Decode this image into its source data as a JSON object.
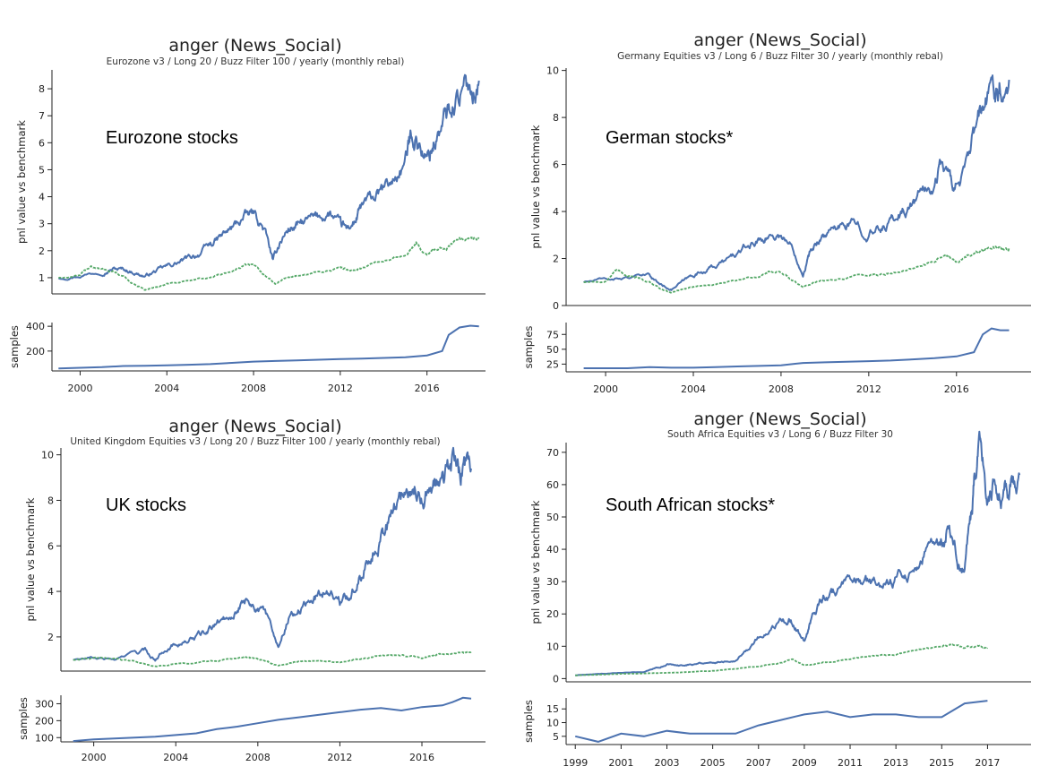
{
  "colors": {
    "strategy": "#4c72b0",
    "benchmark": "#55a868"
  },
  "chart_data": [
    {
      "type": "line",
      "title": "anger (News_Social)",
      "subtitle": "Eurozone v3 / Long 20 / Buzz Filter 100 / yearly (monthly rebal)",
      "annotation": "Eurozone stocks",
      "ylabel": "pnl value vs benchmark",
      "ylim": [
        0.4,
        8.7
      ],
      "yticks": [
        1,
        2,
        3,
        4,
        5,
        6,
        7,
        8
      ],
      "series": [
        {
          "role": "strategy",
          "x": [
            1999.0,
            2000.0,
            2001.0,
            2001.5,
            2002.0,
            2002.5,
            2003.0,
            2003.5,
            2004.0,
            2004.5,
            2005.0,
            2005.5,
            2006.0,
            2006.5,
            2007.0,
            2007.5,
            2008.0,
            2008.5,
            2008.9,
            2009.2,
            2009.6,
            2010.0,
            2010.5,
            2011.0,
            2011.5,
            2012.0,
            2012.3,
            2012.7,
            2013.0,
            2013.5,
            2014.0,
            2014.5,
            2015.0,
            2015.3,
            2015.6,
            2016.0,
            2016.3,
            2016.7,
            2017.0,
            2017.5,
            2018.0,
            2018.4
          ],
          "y": [
            1.0,
            1.1,
            1.25,
            1.35,
            1.3,
            1.2,
            1.05,
            1.25,
            1.4,
            1.55,
            1.7,
            1.9,
            2.2,
            2.5,
            2.8,
            3.2,
            3.35,
            2.8,
            1.6,
            2.3,
            2.8,
            2.9,
            3.1,
            3.2,
            3.4,
            2.9,
            2.8,
            3.1,
            3.6,
            3.9,
            4.2,
            4.6,
            5.3,
            6.4,
            6.1,
            5.3,
            6.0,
            6.6,
            7.2,
            7.8,
            8.0,
            8.3
          ]
        },
        {
          "role": "benchmark",
          "x": [
            1999.0,
            2000.0,
            2000.5,
            2001.0,
            2001.5,
            2002.0,
            2002.5,
            2003.0,
            2003.5,
            2004.0,
            2005.0,
            2006.0,
            2007.0,
            2007.5,
            2008.0,
            2008.5,
            2009.0,
            2009.5,
            2010.0,
            2011.0,
            2012.0,
            2012.5,
            2013.0,
            2014.0,
            2015.0,
            2015.5,
            2016.0,
            2016.5,
            2017.0,
            2017.5,
            2018.0,
            2018.4
          ],
          "y": [
            1.0,
            1.05,
            1.45,
            1.3,
            1.25,
            1.0,
            0.75,
            0.55,
            0.65,
            0.75,
            0.85,
            1.0,
            1.25,
            1.45,
            1.5,
            1.1,
            0.8,
            0.95,
            1.05,
            1.2,
            1.35,
            1.3,
            1.4,
            1.6,
            1.85,
            2.25,
            1.85,
            2.05,
            2.2,
            2.45,
            2.5,
            2.45
          ]
        }
      ],
      "samples": {
        "ylabel": "samples",
        "ylim": [
          40,
          430
        ],
        "yticks": [
          200,
          400
        ],
        "x": [
          1999.0,
          2000.0,
          2001.0,
          2002.0,
          2003.0,
          2004.0,
          2005.0,
          2006.0,
          2007.0,
          2008.0,
          2009.0,
          2010.0,
          2011.0,
          2012.0,
          2013.0,
          2014.0,
          2015.0,
          2016.0,
          2016.7,
          2017.0,
          2017.5,
          2018.0,
          2018.4
        ],
        "y": [
          60,
          65,
          70,
          80,
          82,
          85,
          90,
          95,
          105,
          115,
          120,
          125,
          130,
          135,
          140,
          145,
          150,
          165,
          200,
          330,
          390,
          405,
          400
        ]
      },
      "xticks": [
        2000,
        2004,
        2008,
        2012,
        2016
      ],
      "xlim": [
        1998.7,
        2018.7
      ]
    },
    {
      "type": "line",
      "title": "anger (News_Social)",
      "subtitle": "Germany Equities v3 / Long 6 / Buzz Filter 30 / yearly (monthly rebal)",
      "annotation": "German stocks*",
      "ylabel": "pnl value vs benchmark",
      "ylim": [
        0,
        10.1
      ],
      "yticks": [
        0,
        2,
        4,
        6,
        8,
        10
      ],
      "series": [
        {
          "role": "strategy",
          "x": [
            1999.0,
            2000.0,
            2001.0,
            2002.0,
            2002.5,
            2003.0,
            2003.5,
            2004.0,
            2004.5,
            2005.0,
            2005.5,
            2006.0,
            2006.5,
            2007.0,
            2007.5,
            2008.0,
            2008.5,
            2009.0,
            2009.3,
            2009.7,
            2010.0,
            2010.5,
            2011.0,
            2011.5,
            2012.0,
            2012.5,
            2013.0,
            2013.5,
            2014.0,
            2014.5,
            2015.0,
            2015.3,
            2015.7,
            2016.0,
            2016.5,
            2016.9,
            2017.3,
            2017.7,
            2018.0,
            2018.4
          ],
          "y": [
            1.0,
            1.1,
            1.2,
            1.25,
            0.9,
            0.7,
            1.0,
            1.3,
            1.5,
            1.7,
            1.9,
            2.2,
            2.5,
            2.8,
            3.0,
            3.0,
            2.5,
            1.4,
            2.2,
            2.8,
            3.0,
            3.2,
            3.4,
            3.4,
            3.1,
            3.2,
            3.6,
            4.0,
            4.3,
            4.9,
            5.0,
            6.2,
            5.3,
            5.2,
            5.8,
            7.5,
            8.5,
            9.3,
            9.5,
            9.6
          ]
        },
        {
          "role": "benchmark",
          "x": [
            1999.0,
            2000.0,
            2000.5,
            2001.0,
            2001.5,
            2002.0,
            2002.5,
            2003.0,
            2003.5,
            2004.0,
            2005.0,
            2006.0,
            2007.0,
            2007.5,
            2008.0,
            2008.5,
            2009.0,
            2009.5,
            2010.0,
            2011.0,
            2012.0,
            2012.5,
            2013.0,
            2014.0,
            2015.0,
            2015.5,
            2016.0,
            2016.5,
            2017.0,
            2017.5,
            2018.0,
            2018.4
          ],
          "y": [
            1.0,
            1.05,
            1.45,
            1.3,
            1.2,
            1.0,
            0.7,
            0.55,
            0.7,
            0.8,
            0.9,
            1.05,
            1.25,
            1.45,
            1.45,
            1.05,
            0.8,
            0.95,
            1.05,
            1.2,
            1.35,
            1.3,
            1.4,
            1.6,
            1.85,
            2.3,
            1.8,
            2.0,
            2.2,
            2.45,
            2.5,
            2.45
          ]
        }
      ],
      "samples": {
        "ylabel": "samples",
        "ylim": [
          12,
          95
        ],
        "yticks": [
          25,
          50,
          75
        ],
        "x": [
          1999.0,
          2001.0,
          2002.0,
          2003.0,
          2004.0,
          2005.0,
          2006.0,
          2007.0,
          2008.0,
          2009.0,
          2010.0,
          2011.0,
          2012.0,
          2013.0,
          2014.0,
          2015.0,
          2016.0,
          2016.8,
          2017.2,
          2017.6,
          2018.0,
          2018.4
        ],
        "y": [
          18,
          18,
          20,
          19,
          19,
          20,
          21,
          22,
          23,
          27,
          28,
          29,
          30,
          31,
          33,
          35,
          38,
          45,
          75,
          85,
          82,
          82
        ]
      },
      "xticks": [
        2000,
        2004,
        2008,
        2012,
        2016
      ],
      "xlim": [
        1998.2,
        2019.4
      ]
    },
    {
      "type": "line",
      "title": "anger (News_Social)",
      "subtitle": "United Kingdom Equities v3 / Long 20 / Buzz Filter 100 / yearly (monthly rebal)",
      "annotation": "UK stocks",
      "ylabel": "pnl value vs benchmark",
      "ylim": [
        0.5,
        10.3
      ],
      "yticks": [
        2,
        4,
        6,
        8,
        10
      ],
      "series": [
        {
          "role": "strategy",
          "x": [
            1999.0,
            2000.0,
            2001.0,
            2002.0,
            2002.5,
            2003.0,
            2003.5,
            2004.0,
            2004.5,
            2005.0,
            2005.5,
            2006.0,
            2006.5,
            2007.0,
            2007.5,
            2008.0,
            2008.5,
            2009.0,
            2009.5,
            2010.0,
            2010.5,
            2011.0,
            2011.5,
            2012.0,
            2012.5,
            2013.0,
            2013.5,
            2014.0,
            2014.5,
            2015.0,
            2015.5,
            2016.0,
            2016.5,
            2016.9,
            2017.3,
            2017.7,
            2018.0,
            2018.4
          ],
          "y": [
            1.0,
            1.05,
            1.0,
            1.3,
            1.4,
            1.0,
            1.5,
            1.7,
            1.8,
            2.0,
            2.2,
            2.6,
            2.9,
            3.3,
            3.7,
            3.3,
            2.8,
            1.6,
            2.9,
            3.2,
            3.5,
            3.9,
            4.2,
            3.5,
            3.8,
            4.7,
            5.8,
            6.6,
            7.3,
            8.2,
            8.7,
            8.2,
            8.9,
            8.5,
            9.2,
            9.8,
            9.1,
            9.4
          ]
        },
        {
          "role": "benchmark",
          "x": [
            1999.0,
            2000.0,
            2001.0,
            2002.0,
            2003.0,
            2004.0,
            2005.0,
            2006.0,
            2007.0,
            2007.5,
            2008.0,
            2008.5,
            2009.0,
            2009.5,
            2010.0,
            2011.0,
            2012.0,
            2013.0,
            2014.0,
            2015.0,
            2016.0,
            2016.5,
            2017.0,
            2018.0,
            2018.4
          ],
          "y": [
            1.0,
            1.05,
            1.0,
            0.9,
            0.7,
            0.8,
            0.85,
            0.95,
            1.05,
            1.1,
            1.0,
            0.9,
            0.7,
            0.85,
            0.9,
            1.0,
            0.9,
            1.05,
            1.15,
            1.2,
            1.1,
            1.2,
            1.25,
            1.3,
            1.25
          ]
        }
      ],
      "samples": {
        "ylabel": "samples",
        "ylim": [
          75,
          350
        ],
        "yticks": [
          100,
          200,
          300
        ],
        "x": [
          1999.0,
          2000.0,
          2001.0,
          2002.0,
          2003.0,
          2004.0,
          2005.0,
          2006.0,
          2007.0,
          2008.0,
          2009.0,
          2010.0,
          2011.0,
          2012.0,
          2013.0,
          2014.0,
          2015.0,
          2016.0,
          2017.0,
          2017.5,
          2018.0,
          2018.4
        ],
        "y": [
          80,
          90,
          95,
          100,
          105,
          115,
          125,
          150,
          165,
          185,
          205,
          220,
          235,
          250,
          265,
          275,
          260,
          280,
          290,
          310,
          335,
          330
        ]
      },
      "xticks": [
        2000,
        2004,
        2008,
        2012,
        2016
      ],
      "xlim": [
        1998.4,
        2019.1
      ]
    },
    {
      "type": "line",
      "title": "anger (News_Social)",
      "subtitle": "South Africa Equities v3 / Long 6 / Buzz Filter 30",
      "annotation": "South African stocks*",
      "ylabel": "pnl value vs benchmark",
      "ylim": [
        -1,
        73
      ],
      "yticks": [
        0,
        10,
        20,
        30,
        40,
        50,
        60,
        70
      ],
      "series": [
        {
          "role": "strategy",
          "x": [
            1999.0,
            2000.0,
            2001.0,
            2002.0,
            2002.5,
            2003.0,
            2003.5,
            2004.0,
            2004.5,
            2005.0,
            2005.5,
            2006.0,
            2006.5,
            2007.0,
            2007.5,
            2008.0,
            2008.3,
            2008.7,
            2009.0,
            2009.3,
            2009.7,
            2010.0,
            2010.5,
            2011.0,
            2011.5,
            2012.0,
            2012.5,
            2013.0,
            2013.5,
            2014.0,
            2014.5,
            2015.0,
            2015.3,
            2015.7,
            2016.0,
            2016.3,
            2016.5,
            2016.7,
            2017.0,
            2017.3,
            2017.7,
            2018.0,
            2018.4
          ],
          "y": [
            1.0,
            1.5,
            1.8,
            2.0,
            3.0,
            4.5,
            4.0,
            4.5,
            5.0,
            5.0,
            5.5,
            6.0,
            9.0,
            13.0,
            14.0,
            18.0,
            20.0,
            15.0,
            11.0,
            19.0,
            24.0,
            26.0,
            27.0,
            29.0,
            30.0,
            29.0,
            29.0,
            31.0,
            33.0,
            36.0,
            40.0,
            42.0,
            47.0,
            37.0,
            33.0,
            50.0,
            63.0,
            71.0,
            55.0,
            58.0,
            57.0,
            59.0,
            63.0
          ]
        },
        {
          "role": "benchmark",
          "x": [
            1999.0,
            2000.0,
            2001.0,
            2002.0,
            2003.0,
            2004.0,
            2005.0,
            2006.0,
            2007.0,
            2008.0,
            2008.5,
            2009.0,
            2009.5,
            2010.0,
            2011.0,
            2012.0,
            2013.0,
            2014.0,
            2015.0,
            2015.5,
            2016.0,
            2016.5,
            2017.0
          ],
          "y": [
            1.0,
            1.2,
            1.5,
            1.6,
            1.8,
            2.0,
            2.5,
            3.0,
            4.0,
            5.0,
            6.0,
            4.0,
            4.5,
            5.0,
            6.0,
            7.0,
            7.5,
            9.0,
            10.0,
            10.5,
            9.5,
            10.0,
            9.5
          ]
        }
      ],
      "samples": {
        "ylabel": "samples",
        "ylim": [
          2,
          19
        ],
        "yticks": [
          5,
          10,
          15
        ],
        "x": [
          1999,
          2000,
          2001,
          2002,
          2003,
          2004,
          2005,
          2006,
          2007,
          2008,
          2009,
          2010,
          2011,
          2012,
          2013,
          2014,
          2015,
          2016,
          2017
        ],
        "y": [
          5,
          3,
          6,
          5,
          7,
          6,
          6,
          6,
          9,
          11,
          13,
          14,
          12,
          13,
          13,
          12,
          12,
          17,
          18
        ]
      },
      "xticks": [
        1999,
        2001,
        2003,
        2005,
        2007,
        2009,
        2011,
        2013,
        2015,
        2017
      ],
      "xlim": [
        1998.6,
        2018.9
      ]
    }
  ]
}
